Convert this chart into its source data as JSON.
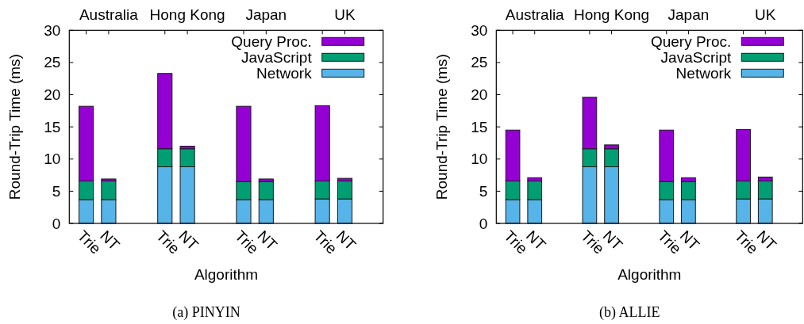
{
  "chart_data": [
    {
      "type": "bar",
      "stacked": true,
      "title": "(a) PINYIN",
      "xlabel": "Algorithm",
      "ylabel": "Round-Trip Time (ms)",
      "categories": [
        "Trie",
        "NT",
        "Trie",
        "NT",
        "Trie",
        "NT",
        "Trie",
        "NT"
      ],
      "annotations": [
        "Australia",
        "Hong Kong",
        "Japan",
        "UK"
      ],
      "series": [
        {
          "name": "Network",
          "color": "#56b4e9",
          "values": [
            3.7,
            3.7,
            8.8,
            8.8,
            3.7,
            3.7,
            3.8,
            3.8
          ]
        },
        {
          "name": "JavaScript",
          "color": "#009e73",
          "values": [
            2.9,
            2.9,
            2.8,
            2.8,
            2.8,
            2.8,
            2.8,
            2.8
          ]
        },
        {
          "name": "Query Proc.",
          "color": "#9400d3",
          "values": [
            11.6,
            0.3,
            11.7,
            0.4,
            11.7,
            0.4,
            11.7,
            0.4
          ]
        }
      ],
      "ylim": [
        0,
        30
      ],
      "yticks": [
        0,
        5,
        10,
        15,
        20,
        25,
        30
      ],
      "legend": "top right"
    },
    {
      "type": "bar",
      "stacked": true,
      "title": "(b) ALLIE",
      "xlabel": "Algorithm",
      "ylabel": "Round-Trip Time (ms)",
      "categories": [
        "Trie",
        "NT",
        "Trie",
        "NT",
        "Trie",
        "NT",
        "Trie",
        "NT"
      ],
      "annotations": [
        "Australia",
        "Hong Kong",
        "Japan",
        "UK"
      ],
      "series": [
        {
          "name": "Network",
          "color": "#56b4e9",
          "values": [
            3.7,
            3.7,
            8.8,
            8.8,
            3.7,
            3.7,
            3.8,
            3.8
          ]
        },
        {
          "name": "JavaScript",
          "color": "#009e73",
          "values": [
            2.9,
            2.9,
            2.8,
            2.8,
            2.8,
            2.8,
            2.8,
            2.8
          ]
        },
        {
          "name": "Query Proc.",
          "color": "#9400d3",
          "values": [
            7.9,
            0.5,
            8.0,
            0.6,
            8.0,
            0.6,
            8.0,
            0.6
          ]
        }
      ],
      "ylim": [
        0,
        30
      ],
      "yticks": [
        0,
        5,
        10,
        15,
        20,
        25,
        30
      ],
      "legend": "top right"
    }
  ]
}
